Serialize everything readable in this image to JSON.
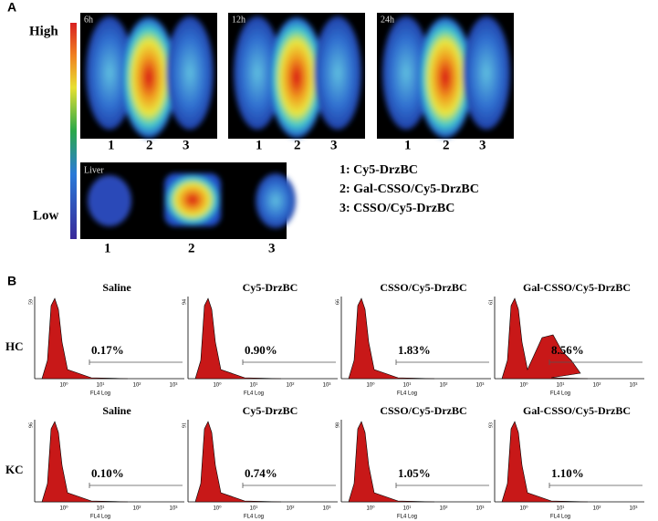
{
  "panel_a": {
    "label": "A",
    "scale_high": "High",
    "scale_low": "Low",
    "images": [
      {
        "time": "6h",
        "numbers": [
          "1",
          "2",
          "3"
        ]
      },
      {
        "time": "12h",
        "numbers": [
          "1",
          "2",
          "3"
        ]
      },
      {
        "time": "24h",
        "numbers": [
          "1",
          "2",
          "3"
        ]
      }
    ],
    "liver": {
      "label": "Liver",
      "numbers": [
        "1",
        "2",
        "3"
      ]
    },
    "legend": [
      "1: Cy5-DrzBC",
      "2: Gal-CSSO/Cy5-DrzBC",
      "3: CSSO/Cy5-DrzBC"
    ]
  },
  "panel_b": {
    "label": "B",
    "x_axis_label": "FL4 Log",
    "x_ticks": [
      "10⁰",
      "10¹",
      "10²",
      "10³"
    ],
    "rows": [
      {
        "label": "HC",
        "plots": [
          {
            "title": "Saline",
            "y_max": "59",
            "percent": "0.17%"
          },
          {
            "title": "Cy5-DrzBC",
            "y_max": "94",
            "percent": "0.90%"
          },
          {
            "title": "CSSO/Cy5-DrzBC",
            "y_max": "66",
            "percent": "1.83%"
          },
          {
            "title": "Gal-CSSO/Cy5-DrzBC",
            "y_max": "61",
            "percent": "8.56%"
          }
        ]
      },
      {
        "label": "KC",
        "plots": [
          {
            "title": "Saline",
            "y_max": "96",
            "percent": "0.10%"
          },
          {
            "title": "Cy5-DrzBC",
            "y_max": "91",
            "percent": "0.74%"
          },
          {
            "title": "CSSO/Cy5-DrzBC",
            "y_max": "98",
            "percent": "1.05%"
          },
          {
            "title": "Gal-CSSO/Cy5-DrzBC",
            "y_max": "93",
            "percent": "1.10%"
          }
        ]
      }
    ]
  }
}
